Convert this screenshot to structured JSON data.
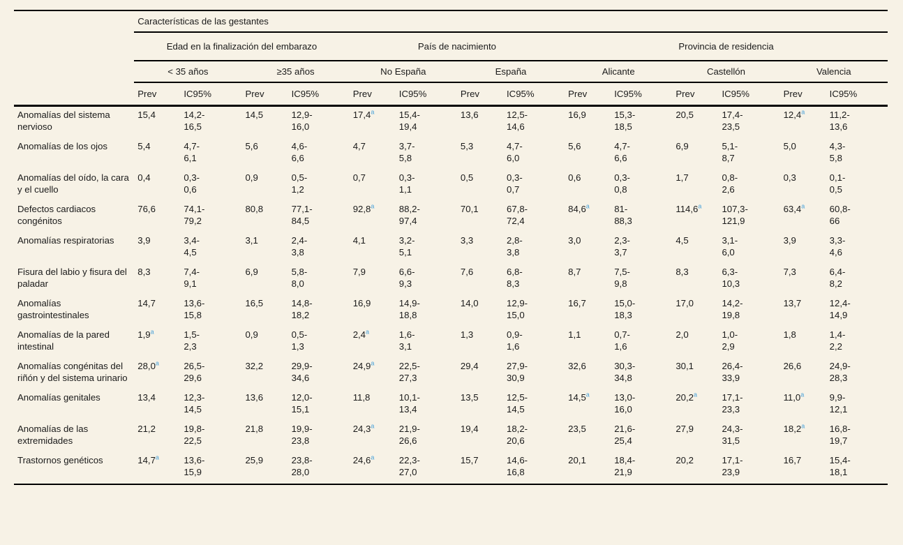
{
  "table": {
    "title": "Características de las gestantes",
    "accent_color": "#4aa2d9",
    "footnote_marker": "a",
    "col_groups": [
      {
        "label": "Edad en la finalización del embarazo",
        "span": 4
      },
      {
        "label": "País de nacimiento",
        "span": 4
      },
      {
        "label": "Provincia de residencia",
        "span": 6
      }
    ],
    "subgroups": [
      "< 35 años",
      "≥35 años",
      "No España",
      "España",
      "Alicante",
      "Castellón",
      "Valencia"
    ],
    "measure_headers": {
      "prev": "Prev",
      "ic": "IC95%"
    },
    "rows": [
      {
        "label": "Anomalías del sistema nervioso",
        "cells": [
          "15,4",
          "14,2-16,5",
          "14,5",
          "12,9-16,0",
          "17,4^a",
          "15,4-19,4",
          "13,6",
          "12,5-14,6",
          "16,9",
          "15,3-18,5",
          "20,5",
          "17,4-23,5",
          "12,4^a",
          "11,2-13,6"
        ]
      },
      {
        "label": "Anomalías de los ojos",
        "cells": [
          "5,4",
          "4,7-6,1",
          "5,6",
          "4,6-6,6",
          "4,7",
          "3,7-5,8",
          "5,3",
          "4,7-6,0",
          "5,6",
          "4,7-6,6",
          "6,9",
          "5,1-8,7",
          "5,0",
          "4,3-5,8"
        ]
      },
      {
        "label": "Anomalías del oído, la cara y el cuello",
        "cells": [
          "0,4",
          "0,3-0,6",
          "0,9",
          "0,5-1,2",
          "0,7",
          "0,3-1,1",
          "0,5",
          "0,3-0,7",
          "0,6",
          "0,3-0,8",
          "1,7",
          "0,8-2,6",
          "0,3",
          "0,1-0,5"
        ]
      },
      {
        "label": "Defectos cardiacos congénitos",
        "cells": [
          "76,6",
          "74,1-79,2",
          "80,8",
          "77,1-84,5",
          "92,8^a",
          "88,2-97,4",
          "70,1",
          "67,8-72,4",
          "84,6^a",
          "81-88,3",
          "114,6^a",
          "107,3-121,9",
          "63,4^a",
          "60,8-66"
        ]
      },
      {
        "label": "Anomalías respiratorias",
        "cells": [
          "3,9",
          "3,4-4,5",
          "3,1",
          "2,4-3,8",
          "4,1",
          "3,2-5,1",
          "3,3",
          "2,8-3,8",
          "3,0",
          "2,3-3,7",
          "4,5",
          "3,1-6,0",
          "3,9",
          "3,3-4,6"
        ]
      },
      {
        "label": "Fisura del labio y fisura del paladar",
        "cells": [
          "8,3",
          "7,4-9,1",
          "6,9",
          "5,8-8,0",
          "7,9",
          "6,6-9,3",
          "7,6",
          "6,8-8,3",
          "8,7",
          "7,5-9,8",
          "8,3",
          "6,3-10,3",
          "7,3",
          "6,4-8,2"
        ]
      },
      {
        "label": "Anomalías gastrointestinales",
        "cells": [
          "14,7",
          "13,6-15,8",
          "16,5",
          "14,8-18,2",
          "16,9",
          "14,9-18,8",
          "14,0",
          "12,9-15,0",
          "16,7",
          "15,0-18,3",
          "17,0",
          "14,2-19,8",
          "13,7",
          "12,4-14,9"
        ]
      },
      {
        "label": "Anomalías de la pared intestinal",
        "cells": [
          "1,9^a",
          "1,5-2,3",
          "0,9",
          "0,5-1,3",
          "2,4^a",
          "1,6-3,1",
          "1,3",
          "0,9-1,6",
          "1,1",
          "0,7-1,6",
          "2,0",
          "1,0-2,9",
          "1,8",
          "1,4-2,2"
        ]
      },
      {
        "label": "Anomalías congénitas del riñón y del sistema urinario",
        "cells": [
          "28,0^a",
          "26,5-29,6",
          "32,2",
          "29,9-34,6",
          "24,9^a",
          "22,5-27,3",
          "29,4",
          "27,9-30,9",
          "32,6",
          "30,3-34,8",
          "30,1",
          "26,4-33,9",
          "26,6",
          "24,9-28,3"
        ]
      },
      {
        "label": "Anomalías genitales",
        "cells": [
          "13,4",
          "12,3-14,5",
          "13,6",
          "12,0-15,1",
          "11,8",
          "10,1-13,4",
          "13,5",
          "12,5-14,5",
          "14,5^a",
          "13,0-16,0",
          "20,2^a",
          "17,1-23,3",
          "11,0^a",
          "9,9-12,1"
        ]
      },
      {
        "label": "Anomalías de las extremidades",
        "cells": [
          "21,2",
          "19,8-22,5",
          "21,8",
          "19,9-23,8",
          "24,3^a",
          "21,9-26,6",
          "19,4",
          "18,2-20,6",
          "23,5",
          "21,6-25,4",
          "27,9",
          "24,3-31,5",
          "18,2^a",
          "16,8-19,7"
        ]
      },
      {
        "label": "Trastornos genéticos",
        "cells": [
          "14,7^a",
          "13,6-15,9",
          "25,9",
          "23,8-28,0",
          "24,6^a",
          "22,3-27,0",
          "15,7",
          "14,6-16,8",
          "20,1",
          "18,4-21,9",
          "20,2",
          "17,1-23,9",
          "16,7",
          "15,4-18,1"
        ]
      }
    ]
  }
}
